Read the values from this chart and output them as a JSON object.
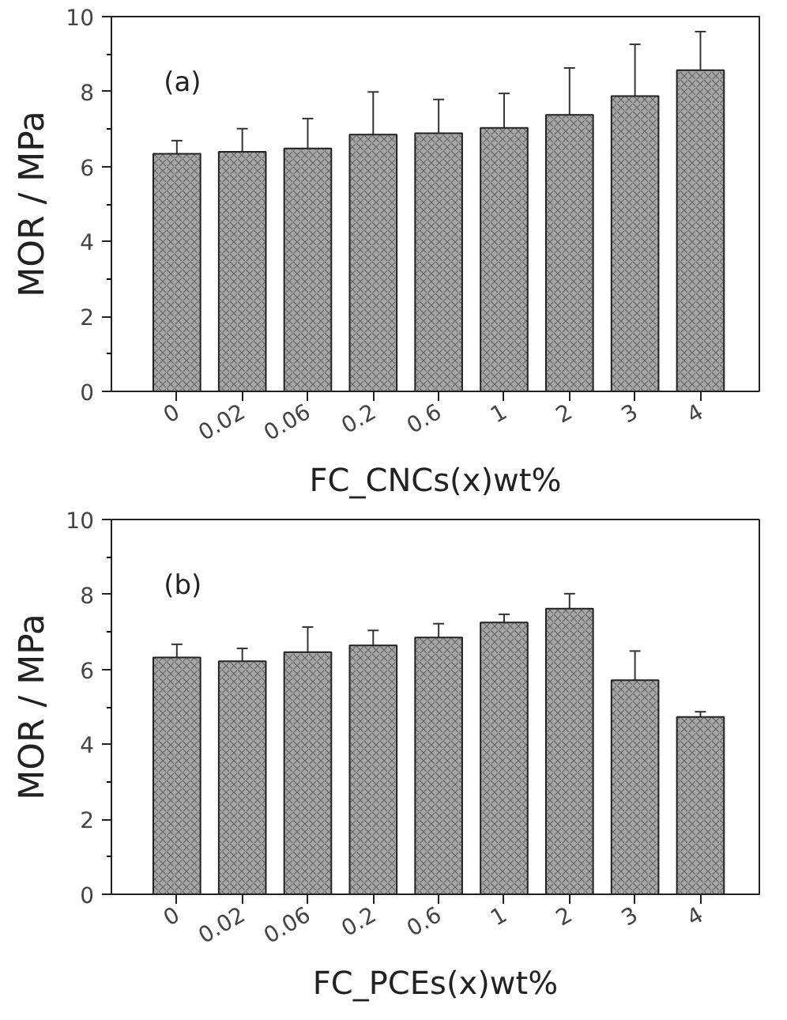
{
  "chart_data": [
    {
      "type": "bar",
      "xlabel": "FC_CNCs(x)wt%",
      "ylabel": "MOR / MPa",
      "annotations": [
        "(a)"
      ],
      "categories": [
        "0",
        "0.02",
        "0.06",
        "0.2",
        "0.6",
        "1",
        "2",
        "3",
        "4"
      ],
      "values": [
        6.34,
        6.39,
        6.48,
        6.85,
        6.89,
        7.03,
        7.38,
        7.88,
        8.57
      ],
      "errors": [
        0.35,
        0.62,
        0.8,
        1.14,
        0.9,
        0.92,
        1.25,
        1.38,
        1.03
      ],
      "color": "#a6a6a6",
      "ylim": [
        0,
        10
      ],
      "yticks": [
        0,
        2,
        4,
        6,
        8,
        10
      ],
      "grid": false
    },
    {
      "type": "bar",
      "xlabel": "FC_PCEs(x)wt%",
      "ylabel": "MOR / MPa",
      "annotations": [
        "(b)"
      ],
      "categories": [
        "0",
        "0.02",
        "0.06",
        "0.2",
        "0.6",
        "1",
        "2",
        "3",
        "4"
      ],
      "values": [
        6.32,
        6.22,
        6.46,
        6.64,
        6.85,
        7.25,
        7.62,
        5.71,
        4.73
      ],
      "errors": [
        0.35,
        0.34,
        0.67,
        0.4,
        0.37,
        0.22,
        0.4,
        0.78,
        0.14
      ],
      "color": "#a6a6a6",
      "ylim": [
        0,
        10
      ],
      "yticks": [
        0,
        2,
        4,
        6,
        8,
        10
      ],
      "grid": false
    }
  ]
}
